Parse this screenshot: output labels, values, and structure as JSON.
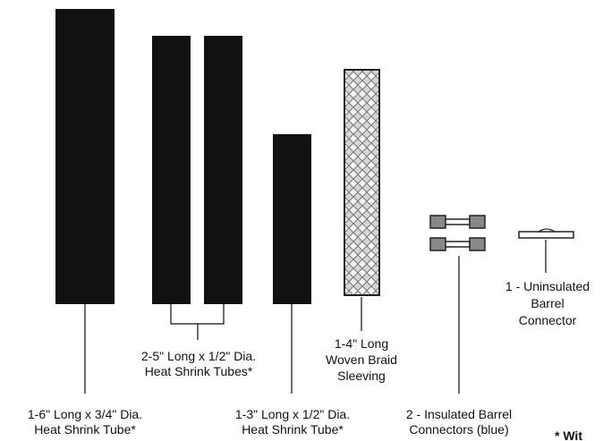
{
  "labels": [
    {
      "lines": [
        "1-6\" Long x 3/4\" Dia.",
        "Heat Shrink Tube*"
      ]
    },
    {
      "lines": [
        "2-5\" Long x 1/2\" Dia.",
        "Heat Shrink Tubes*"
      ]
    },
    {
      "lines": [
        "1-3\" Long x 1/2\" Dia.",
        "Heat Shrink Tube*"
      ]
    },
    {
      "lines": [
        "1-4\" Long",
        "Woven Braid",
        "Sleeving"
      ]
    },
    {
      "lines": [
        "2 - Insulated Barrel",
        "Connectors (blue)"
      ]
    },
    {
      "lines": [
        "1 - Uninsulated",
        "Barrel",
        "Connector"
      ]
    }
  ],
  "footnote": "* Wit"
}
